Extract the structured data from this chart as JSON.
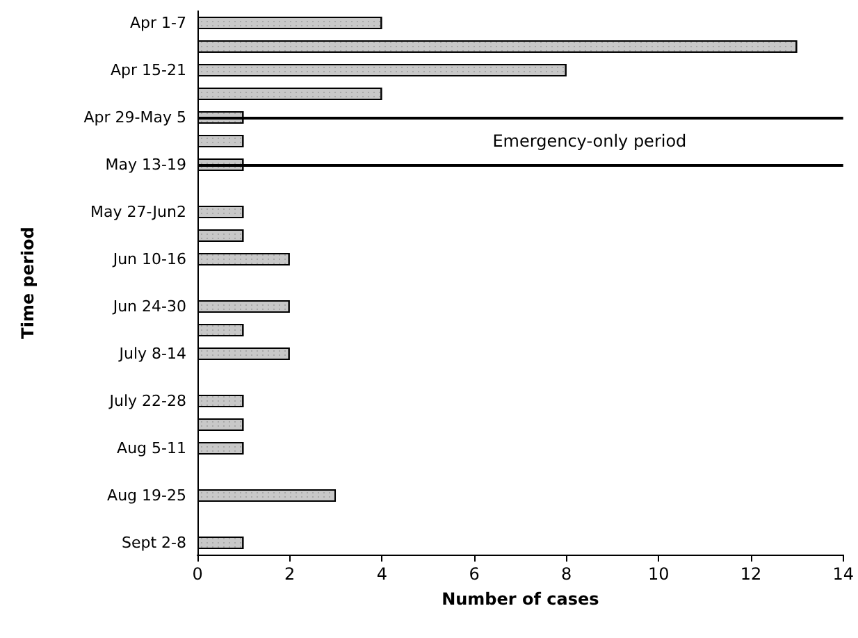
{
  "chart_data": {
    "type": "bar",
    "orientation": "horizontal",
    "xlabel": "Number of cases",
    "ylabel": "Time period",
    "categories": [
      "Apr 1-7",
      null,
      "Apr 15-21",
      null,
      "Apr 29-May 5",
      null,
      "May 13-19",
      null,
      "May 27-Jun2",
      null,
      "Jun 10-16",
      null,
      "Jun 24-30",
      null,
      "July 8-14",
      null,
      "July 22-28",
      null,
      "Aug 5-11",
      null,
      "Aug 19-25",
      null,
      "Sept 2-8"
    ],
    "values": [
      4,
      13,
      8,
      4,
      1,
      1,
      1,
      0,
      1,
      1,
      2,
      0,
      2,
      1,
      2,
      0,
      1,
      1,
      1,
      0,
      3,
      0,
      1
    ],
    "color": "#c8c8c8",
    "xlim": [
      0,
      14
    ],
    "xticks": [
      0,
      2,
      4,
      6,
      8,
      10,
      12,
      14
    ],
    "grid": false,
    "ref_lines": [
      {
        "axis": "y",
        "value": "Apr 29-May 5",
        "label": "Emergency-only period",
        "color": "#000000"
      },
      {
        "axis": "y",
        "value": "May 13-19",
        "color": "#000000"
      }
    ]
  }
}
